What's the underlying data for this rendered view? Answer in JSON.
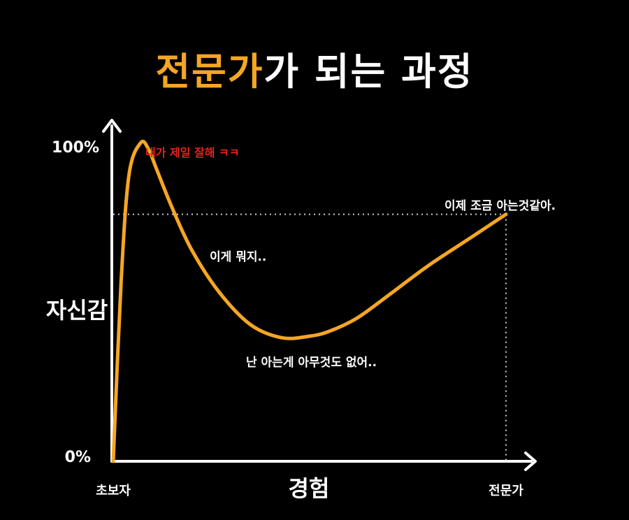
{
  "colors": {
    "accent": "#F5A623",
    "annotation_red": "#E8231E",
    "text": "#FFFFFF",
    "background": "#000000"
  },
  "title": {
    "highlight": "전문가",
    "rest": "가 되는 과정"
  },
  "chart_data": {
    "type": "line",
    "title": "전문가가 되는 과정",
    "ylabel": "자신감",
    "xlabel": "경험",
    "y_ticks": [
      "100%",
      "0%"
    ],
    "x_ticks": [
      "초보자",
      "전문가"
    ],
    "ylim": [
      0,
      100
    ],
    "xlim": [
      0,
      100
    ],
    "grid": false,
    "series": [
      {
        "x": [
          0,
          2,
          4,
          7,
          9,
          11,
          15,
          20,
          27,
          35,
          43,
          50,
          55,
          62,
          70,
          80,
          90,
          100
        ],
        "y": [
          0,
          55,
          88,
          98,
          96,
          90,
          78,
          65,
          52,
          42,
          38,
          38.5,
          40,
          44,
          51,
          60,
          68,
          76
        ]
      }
    ],
    "reference": {
      "x": 100,
      "y": 76,
      "style": "dotted"
    },
    "annotations": [
      {
        "text": "내가 제일 잘해 ㅋㅋ",
        "color": "#E8231E"
      },
      {
        "text": "이게 뭐지.."
      },
      {
        "text": "난 아는게 아무것도 없어.."
      },
      {
        "text": "이제 조금 아는것같아."
      }
    ]
  }
}
